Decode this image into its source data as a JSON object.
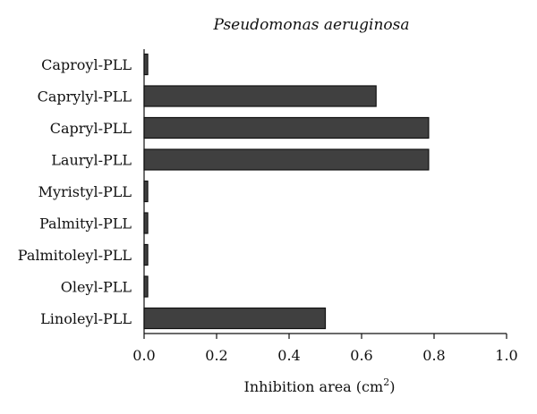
{
  "chart_data": {
    "type": "bar",
    "orientation": "horizontal",
    "title": "Pseudomonas aeruginosa",
    "categories": [
      "Caproyl-PLL",
      "Caprylyl-PLL",
      "Capryl-PLL",
      "Lauryl-PLL",
      "Myristyl-PLL",
      "Palmityl-PLL",
      "Palmitoleyl-PLL",
      "Oleyl-PLL",
      "Linoleyl-PLL"
    ],
    "values": [
      0.01,
      0.64,
      0.785,
      0.785,
      0.01,
      0.01,
      0.01,
      0.01,
      0.5
    ],
    "xlabel_main": "Inhibition area (cm",
    "xlabel_sup": "2",
    "xlabel_tail": ")",
    "ylabel": "",
    "xlim": [
      0,
      1.0
    ],
    "xticks": [
      0.0,
      0.2,
      0.4,
      0.6,
      0.8,
      1.0
    ],
    "xtick_labels": [
      "0.0",
      "0.2",
      "0.4",
      "0.6",
      "0.8",
      "1.0"
    ],
    "bar_color": "#404040",
    "grid": false,
    "legend": "none"
  }
}
